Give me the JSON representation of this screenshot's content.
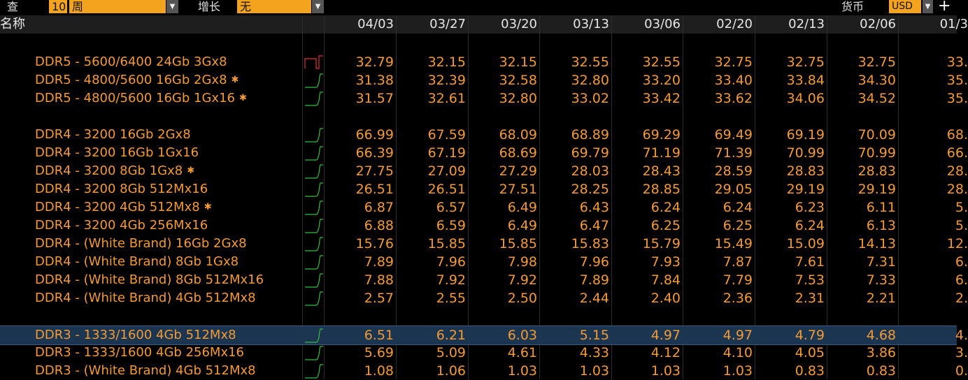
{
  "toolbar": {
    "query_label": "查",
    "query_number": "10",
    "query_unit": "周",
    "growth_label": "增长",
    "growth_value": "无",
    "currency_label": "货币",
    "currency_value": "USD",
    "add_icon": "plus-zoom-icon"
  },
  "header": {
    "name_label": "名称",
    "dates": [
      "04/03",
      "03/27",
      "03/20",
      "03/13",
      "03/06",
      "02/20",
      "02/13",
      "02/06",
      "01/3"
    ]
  },
  "colors": {
    "accent": "#f29a36",
    "selected_row": "#1c3651",
    "spark_up": "#2fbf3c",
    "spark_down": "#e03030"
  },
  "rows": [
    {
      "name": "DDR5 - 5600/6400 24Gb 3Gx8",
      "star": "",
      "values": [
        "32.79",
        "32.15",
        "32.15",
        "32.55",
        "32.55",
        "32.75",
        "32.75",
        "32.75",
        "33."
      ],
      "spark": "down",
      "selected": false
    },
    {
      "name": "DDR5 - 4800/5600 16Gb 2Gx8",
      "star": "✱",
      "values": [
        "31.38",
        "32.39",
        "32.58",
        "32.80",
        "33.20",
        "33.40",
        "33.84",
        "34.30",
        "35."
      ],
      "spark": "up",
      "selected": false
    },
    {
      "name": "DDR5 - 4800/5600 16Gb 1Gx16",
      "star": "✱",
      "values": [
        "31.57",
        "32.61",
        "32.80",
        "33.02",
        "33.42",
        "33.62",
        "34.06",
        "34.52",
        "35."
      ],
      "spark": "up",
      "selected": false
    },
    {
      "name": "DDR4 - 3200 16Gb 2Gx8",
      "star": "",
      "values": [
        "66.99",
        "67.59",
        "68.09",
        "68.89",
        "69.29",
        "69.49",
        "69.19",
        "70.09",
        "68."
      ],
      "spark": "up",
      "selected": false
    },
    {
      "name": "DDR4 - 3200 16Gb 1Gx16",
      "star": "",
      "values": [
        "66.39",
        "67.19",
        "68.69",
        "69.79",
        "71.19",
        "71.39",
        "70.99",
        "70.99",
        "66."
      ],
      "spark": "up",
      "selected": false
    },
    {
      "name": "DDR4 - 3200 8Gb 1Gx8",
      "star": "✱",
      "values": [
        "27.75",
        "27.09",
        "27.29",
        "28.03",
        "28.43",
        "28.59",
        "28.83",
        "28.83",
        "28."
      ],
      "spark": "up",
      "selected": false
    },
    {
      "name": "DDR4 - 3200 8Gb 512Mx16",
      "star": "",
      "values": [
        "26.51",
        "26.51",
        "27.51",
        "28.25",
        "28.85",
        "29.05",
        "29.19",
        "29.19",
        "28."
      ],
      "spark": "up",
      "selected": false
    },
    {
      "name": "DDR4 - 3200 4Gb 512Mx8",
      "star": "✱",
      "values": [
        "6.87",
        "6.57",
        "6.49",
        "6.43",
        "6.24",
        "6.24",
        "6.23",
        "6.11",
        "5."
      ],
      "spark": "up",
      "selected": false
    },
    {
      "name": "DDR4 - 3200 4Gb 256Mx16",
      "star": "",
      "values": [
        "6.88",
        "6.59",
        "6.49",
        "6.47",
        "6.25",
        "6.25",
        "6.24",
        "6.13",
        "5."
      ],
      "spark": "up",
      "selected": false
    },
    {
      "name": "DDR4 - (White Brand) 16Gb 2Gx8",
      "star": "",
      "values": [
        "15.76",
        "15.85",
        "15.85",
        "15.83",
        "15.79",
        "15.49",
        "15.09",
        "14.13",
        "12."
      ],
      "spark": "up",
      "selected": false
    },
    {
      "name": "DDR4 - (White Brand) 8Gb 1Gx8",
      "star": "",
      "values": [
        "7.89",
        "7.96",
        "7.98",
        "7.96",
        "7.93",
        "7.87",
        "7.61",
        "7.31",
        "6."
      ],
      "spark": "up",
      "selected": false
    },
    {
      "name": "DDR4 - (White Brand) 8Gb 512Mx16",
      "star": "",
      "values": [
        "7.88",
        "7.92",
        "7.92",
        "7.89",
        "7.84",
        "7.79",
        "7.53",
        "7.33",
        "6."
      ],
      "spark": "up",
      "selected": false
    },
    {
      "name": "DDR4 - (White Brand) 4Gb 512Mx8",
      "star": "",
      "values": [
        "2.57",
        "2.55",
        "2.50",
        "2.44",
        "2.40",
        "2.36",
        "2.31",
        "2.21",
        "2."
      ],
      "spark": "up",
      "selected": false
    },
    {
      "name": "DDR3 - 1333/1600 4Gb 512Mx8",
      "star": "",
      "values": [
        "6.51",
        "6.21",
        "6.03",
        "5.15",
        "4.97",
        "4.97",
        "4.79",
        "4.68",
        "4."
      ],
      "spark": "up",
      "selected": true
    },
    {
      "name": "DDR3 - 1333/1600 4Gb 256Mx16",
      "star": "",
      "values": [
        "5.69",
        "5.09",
        "4.61",
        "4.33",
        "4.12",
        "4.10",
        "4.05",
        "3.86",
        "3."
      ],
      "spark": "up",
      "selected": false
    },
    {
      "name": "DDR3 - (White Brand) 4Gb 512Mx8",
      "star": "",
      "values": [
        "1.08",
        "1.06",
        "1.03",
        "1.03",
        "1.03",
        "1.03",
        "0.83",
        "0.83",
        "0."
      ],
      "spark": "up",
      "selected": false
    }
  ]
}
